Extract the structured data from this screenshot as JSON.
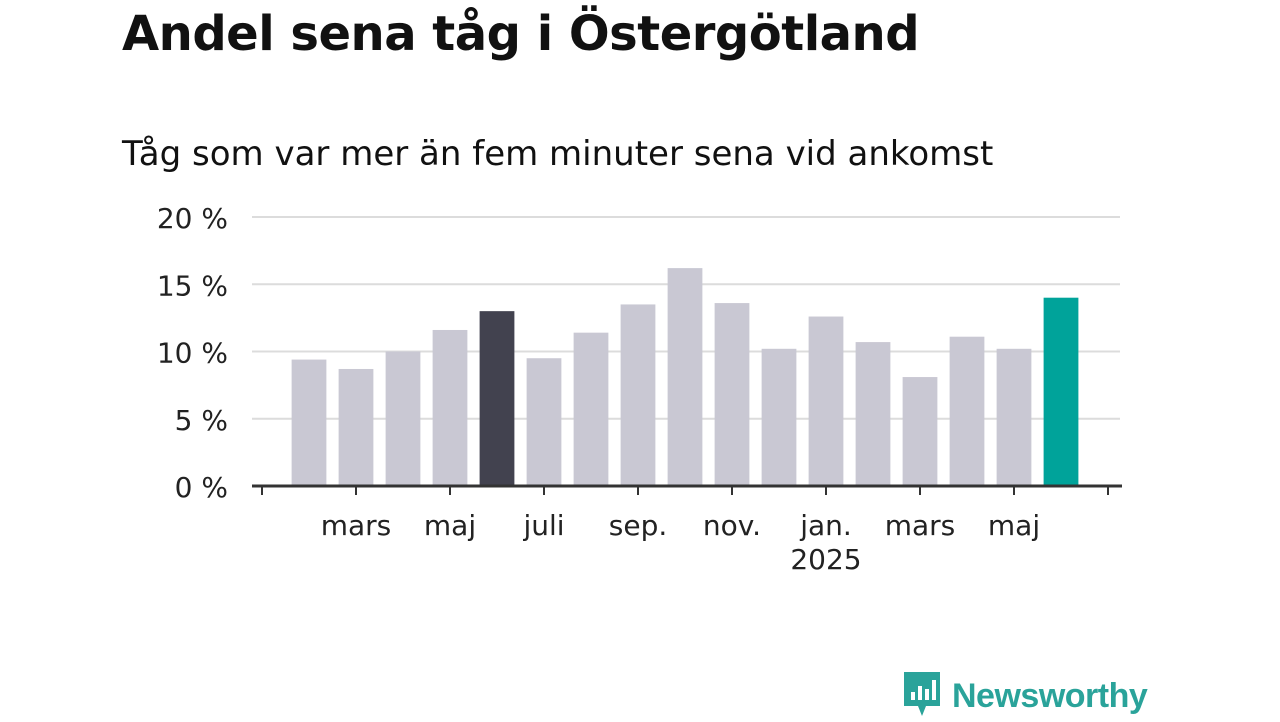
{
  "title": "Andel sena tåg i Östergötland",
  "subtitle": "Tåg som var mer än fem minuter sena vid ankomst",
  "brand": {
    "name": "Newsworthy",
    "icon": "bar-chart-speech-bubble-icon",
    "color": "#2aa39a"
  },
  "chart_data": {
    "type": "bar",
    "categories": [
      "2024-02",
      "2024-03",
      "2024-04",
      "2024-05",
      "2024-06",
      "2024-07",
      "2024-08",
      "2024-09",
      "2024-10",
      "2024-11",
      "2024-12",
      "2025-01",
      "2025-02",
      "2025-03",
      "2025-04",
      "2025-05",
      "2025-06"
    ],
    "values": [
      9.4,
      8.7,
      10.0,
      11.6,
      13.0,
      9.5,
      11.4,
      13.5,
      16.2,
      13.6,
      10.2,
      12.6,
      10.7,
      8.1,
      11.1,
      10.2,
      14.0
    ],
    "highlight": {
      "2024-06": "#42424f",
      "2025-06": "#00a39a"
    },
    "bar_color": "#c9c8d3",
    "ylim": [
      0,
      20
    ],
    "yticks": [
      0,
      5,
      10,
      15,
      20
    ],
    "ytick_labels": [
      "0 %",
      "5 %",
      "10 %",
      "15 %",
      "20 %"
    ],
    "xtick_labels": [
      {
        "at": "2024-03",
        "label": "mars"
      },
      {
        "at": "2024-05",
        "label": "maj"
      },
      {
        "at": "2024-07",
        "label": "juli"
      },
      {
        "at": "2024-09",
        "label": "sep."
      },
      {
        "at": "2024-11",
        "label": "nov."
      },
      {
        "at": "2025-01",
        "label": "jan.",
        "sublabel": "2025"
      },
      {
        "at": "2025-03",
        "label": "mars"
      },
      {
        "at": "2025-05",
        "label": "maj"
      }
    ],
    "grid": true
  }
}
